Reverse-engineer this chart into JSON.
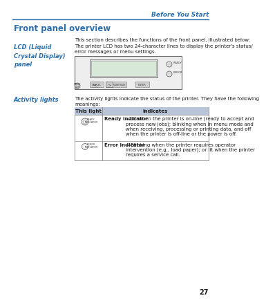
{
  "page_num": "27",
  "header_text": "Before You Start",
  "header_color": "#2c6fad",
  "header_line_color": "#2c6fad",
  "title": "Front panel overview",
  "title_color": "#2c6fad",
  "section1_label": "LCD (Liquid\nCrystal Display)\npanel",
  "section1_label_color": "#2c6fad",
  "section1_intro": "This section describes the functions of the front panel, illustrated below:",
  "section1_body": "The printer LCD has two 24-character lines to display the printer's status/\nerror messages or menu settings.",
  "section2_label": "Activity lights",
  "section2_label_color": "#2c6fad",
  "section2_intro": "The activity lights indicate the status of the printer. They have the following\nmeanings:",
  "table_header_col1": "This light",
  "table_header_col2": "Indicates",
  "table_header_bg": "#b8c4d8",
  "table_row1_text_bold": "Ready indicator",
  "table_row1_text": "—Lit when the printer is on-line (ready to accept and process new jobs); blinking when in menu mode and when receiving, processing or printing data, and off when the printer is off-line or the power is off.",
  "table_row2_text_bold": "Error indicator",
  "table_row2_text": "—Blinking when the printer requires operator intervention (e.g., load paper); or lit when the printer requires a service call.",
  "bg_color": "#ffffff",
  "text_color": "#1a1a1a",
  "body_fontsize": 5.0,
  "label_fontsize": 6.0,
  "title_fontsize": 8.5,
  "header_fontsize": 6.5,
  "page_num_fontsize": 7.0
}
